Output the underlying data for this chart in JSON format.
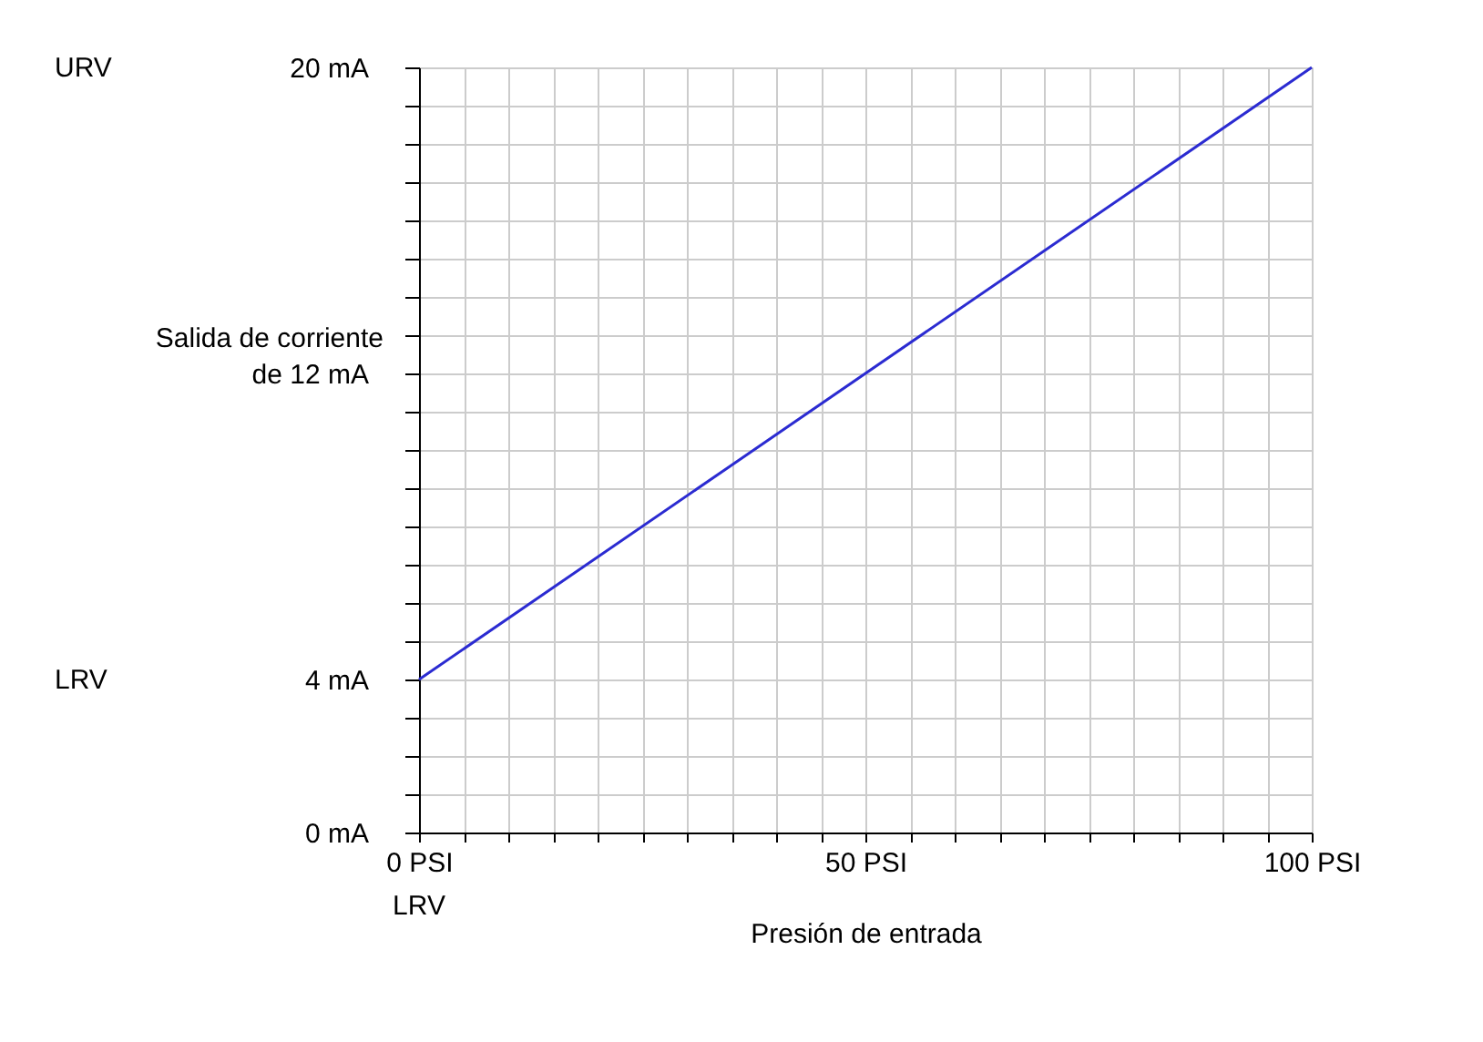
{
  "chart_data": {
    "type": "line",
    "xlabel": "Presión de entrada",
    "x": [
      0,
      100
    ],
    "series": [
      {
        "color": "#2b2bd1",
        "values": [
          4,
          20
        ]
      }
    ],
    "xlim": [
      0,
      100
    ],
    "ylim": [
      0,
      20
    ],
    "xticks": [
      {
        "value": 0,
        "label": "0 PSI"
      },
      {
        "value": 5,
        "label": null
      },
      {
        "value": 10,
        "label": null
      },
      {
        "value": 15,
        "label": null
      },
      {
        "value": 20,
        "label": null
      },
      {
        "value": 25,
        "label": null
      },
      {
        "value": 30,
        "label": null
      },
      {
        "value": 35,
        "label": null
      },
      {
        "value": 40,
        "label": null
      },
      {
        "value": 45,
        "label": null
      },
      {
        "value": 50,
        "label": "50 PSI"
      },
      {
        "value": 55,
        "label": null
      },
      {
        "value": 60,
        "label": null
      },
      {
        "value": 65,
        "label": null
      },
      {
        "value": 70,
        "label": null
      },
      {
        "value": 75,
        "label": null
      },
      {
        "value": 80,
        "label": null
      },
      {
        "value": 85,
        "label": null
      },
      {
        "value": 90,
        "label": null
      },
      {
        "value": 95,
        "label": null
      },
      {
        "value": 100,
        "label": "100 PSI"
      }
    ],
    "yticks": [
      {
        "value": 0,
        "label": "0 mA"
      },
      {
        "value": 1,
        "label": null
      },
      {
        "value": 2,
        "label": null
      },
      {
        "value": 3,
        "label": null
      },
      {
        "value": 4,
        "label": "4 mA"
      },
      {
        "value": 5,
        "label": null
      },
      {
        "value": 6,
        "label": null
      },
      {
        "value": 7,
        "label": null
      },
      {
        "value": 8,
        "label": null
      },
      {
        "value": 9,
        "label": null
      },
      {
        "value": 10,
        "label": null
      },
      {
        "value": 11,
        "label": null
      },
      {
        "value": 12,
        "label": "de 12 mA"
      },
      {
        "value": 13,
        "label": null
      },
      {
        "value": 14,
        "label": null
      },
      {
        "value": 15,
        "label": null
      },
      {
        "value": 16,
        "label": null
      },
      {
        "value": 17,
        "label": null
      },
      {
        "value": 18,
        "label": null
      },
      {
        "value": 19,
        "label": null
      },
      {
        "value": 20,
        "label": "20 mA"
      }
    ],
    "ylabel": "Salida de corriente",
    "annotations": [
      "URV",
      "LRV",
      "LRV"
    ],
    "grid": true,
    "marker": "none",
    "line_style": "solid"
  }
}
